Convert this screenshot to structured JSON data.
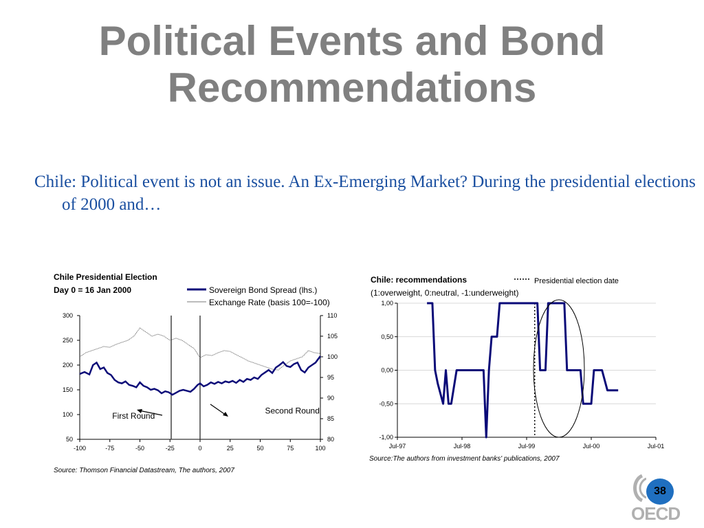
{
  "slide": {
    "title_line1": "Political Events and Bond",
    "title_line2": "Recommendations",
    "subtitle": "Chile: Political event is not an issue. An Ex-Emerging Market? During the presidential elections of 2000 and…",
    "page_number": "38",
    "logo_text": "OECD",
    "title_color": "#808080",
    "subtitle_color": "#1a4fa0",
    "badge_color": "#1f6fc0"
  },
  "chart_data": [
    {
      "type": "line",
      "title": "Chile Presidential Election",
      "subtitle": "Day 0 = 16 Jan 2000",
      "source": "Source: Thomson Financial Datastream, The authors, 2007",
      "x_ticks": [
        "-100",
        "-75",
        "-50",
        "-25",
        "0",
        "25",
        "50",
        "75",
        "100"
      ],
      "xlim": [
        -100,
        100
      ],
      "y_left_ticks": [
        "300",
        "250",
        "200",
        "150",
        "100",
        "50"
      ],
      "ylim_left": [
        50,
        300
      ],
      "y_right_ticks": [
        "110",
        "105",
        "100",
        "95",
        "90",
        "85",
        "80"
      ],
      "ylim_right": [
        80,
        110
      ],
      "vertical_lines": [
        -24,
        0
      ],
      "annotations": [
        {
          "text": "First Round",
          "x": -73,
          "y": 92
        },
        {
          "text": "Second Round",
          "x": 54,
          "y": 102
        }
      ],
      "series": [
        {
          "name": "Sovereign Bond Spread (lhs.)",
          "axis": "left",
          "color": "#0a0a78",
          "x": [
            -100,
            -96,
            -92,
            -89,
            -86,
            -83,
            -80,
            -77,
            -74,
            -71,
            -68,
            -65,
            -62,
            -59,
            -56,
            -53,
            -50,
            -47,
            -44,
            -41,
            -38,
            -35,
            -32,
            -29,
            -26,
            -23,
            -20,
            -17,
            -14,
            -11,
            -8,
            -5,
            -2,
            0,
            3,
            6,
            9,
            12,
            15,
            18,
            21,
            24,
            27,
            30,
            33,
            36,
            39,
            42,
            45,
            48,
            51,
            54,
            57,
            60,
            63,
            66,
            69,
            72,
            75,
            78,
            81,
            84,
            87,
            90,
            93,
            96,
            100
          ],
          "y": [
            182,
            186,
            181,
            200,
            205,
            192,
            195,
            184,
            180,
            170,
            165,
            163,
            167,
            160,
            158,
            155,
            165,
            158,
            155,
            150,
            152,
            149,
            143,
            147,
            145,
            140,
            144,
            148,
            150,
            148,
            146,
            152,
            160,
            163,
            157,
            160,
            165,
            162,
            166,
            163,
            167,
            165,
            168,
            164,
            170,
            166,
            172,
            170,
            175,
            172,
            180,
            185,
            190,
            184,
            195,
            200,
            206,
            198,
            196,
            202,
            205,
            190,
            185,
            195,
            200,
            205,
            218
          ]
        },
        {
          "name": "Exchange Rate (basis 100=-100)",
          "axis": "right",
          "color": "#555555",
          "x": [
            -100,
            -95,
            -90,
            -85,
            -80,
            -75,
            -70,
            -65,
            -60,
            -55,
            -50,
            -45,
            -40,
            -35,
            -30,
            -25,
            -20,
            -15,
            -10,
            -5,
            0,
            5,
            10,
            15,
            20,
            25,
            30,
            35,
            40,
            45,
            50,
            55,
            60,
            65,
            70,
            75,
            80,
            85,
            90,
            95,
            100
          ],
          "y": [
            100,
            101,
            101.5,
            102,
            102.5,
            102.3,
            103,
            103.5,
            104,
            105,
            107,
            106,
            105,
            105.5,
            105,
            104,
            104.5,
            104,
            103,
            102,
            99.8,
            100.5,
            100.3,
            101,
            101.5,
            101.3,
            100.5,
            99.8,
            99,
            98.5,
            98,
            97.5,
            97,
            96.8,
            98,
            99,
            99.5,
            100,
            101.5,
            101,
            100.8
          ]
        }
      ]
    },
    {
      "type": "line",
      "title": "Chile: recommendations",
      "subtitle": "(1:overweight, 0:neutral, -1:underweight)",
      "legend_label": "Presidential election date",
      "source": "Source:The authors from investment banks' publications, 2007",
      "x_ticks": [
        "Jul-97",
        "Jul-98",
        "Jul-99",
        "Jul-00",
        "Jul-01"
      ],
      "xlim": [
        0,
        48
      ],
      "y_ticks": [
        "1,00",
        "0,50",
        "0,00",
        "-0,50",
        "-1,00"
      ],
      "ylim": [
        -1,
        1
      ],
      "election_x": 25.5,
      "series": [
        {
          "name": "",
          "color": "#0a0a78",
          "x": [
            5.5,
            6.5,
            7,
            7.5,
            8.5,
            9,
            9.5,
            10,
            11,
            11.5,
            15.5,
            16,
            16.5,
            17,
            17.5,
            18.5,
            19,
            20,
            21.5,
            22,
            23,
            24,
            26,
            26.5,
            27.5,
            28,
            29,
            31,
            31.5,
            32.5,
            33,
            34,
            34.5,
            36,
            36.5,
            37.5,
            38,
            39,
            40,
            41
          ],
          "y": [
            1,
            1,
            0,
            -0.2,
            -0.5,
            0,
            -0.5,
            -0.5,
            0,
            0,
            0,
            0,
            -1,
            0,
            0.5,
            0.5,
            1,
            1,
            1,
            1,
            1,
            1,
            1,
            0,
            0,
            1,
            1,
            1,
            0,
            0,
            0,
            0,
            -0.5,
            -0.5,
            0,
            0,
            0,
            -0.3,
            -0.3,
            -0.3
          ]
        }
      ]
    }
  ]
}
